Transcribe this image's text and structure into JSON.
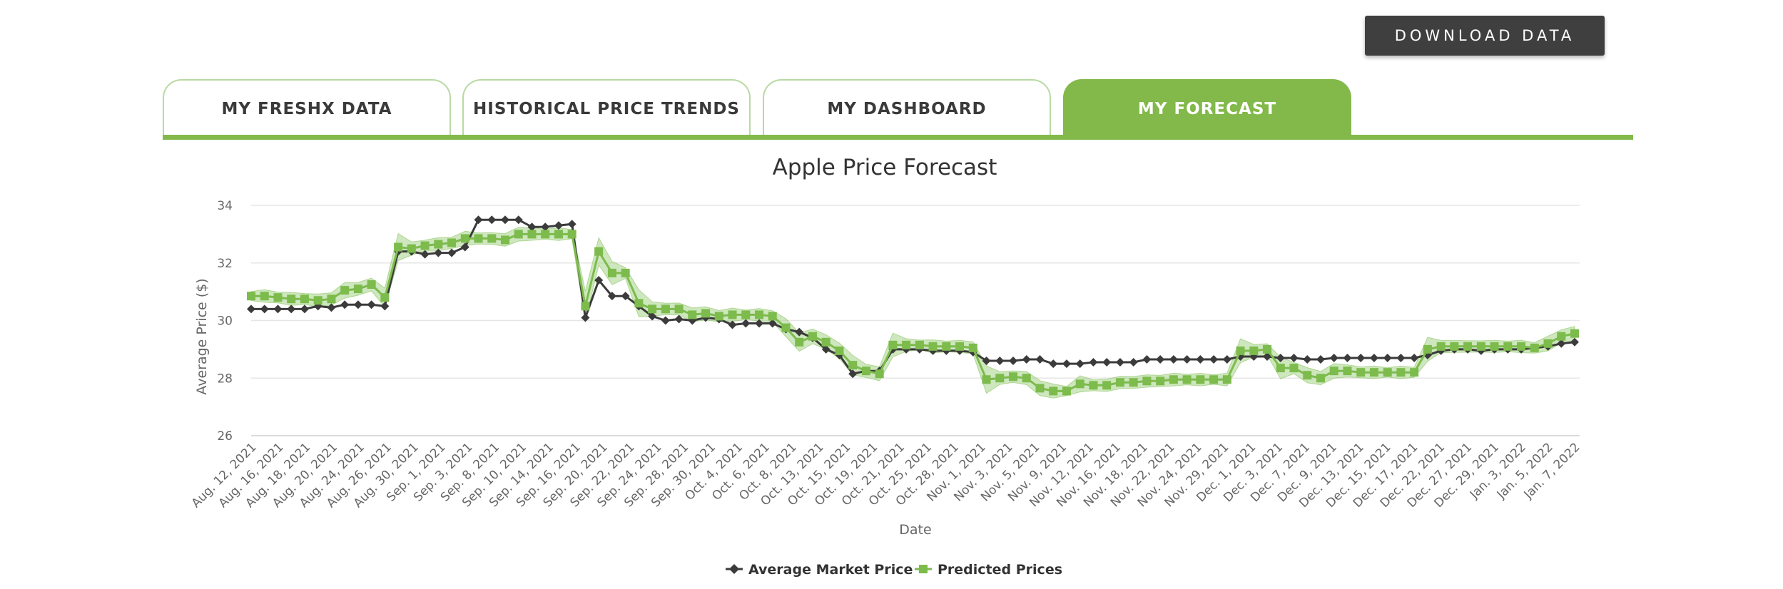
{
  "toolbar": {
    "download_label": "DOWNLOAD  DATA"
  },
  "tabs": [
    {
      "label": "MY FRESHX DATA",
      "active": false
    },
    {
      "label": "HISTORICAL PRICE TRENDS",
      "active": false
    },
    {
      "label": "MY DASHBOARD",
      "active": false
    },
    {
      "label": "MY FORECAST",
      "active": true
    }
  ],
  "colors": {
    "accent": "#82b94a",
    "market": "#3b3b3b",
    "predicted": "#7cbb4c",
    "band": "#a6d488"
  },
  "chart_data": {
    "type": "line",
    "title": "Apple Price Forecast",
    "xlabel": "Date",
    "ylabel": "Average Price ($)",
    "ylim": [
      26,
      34
    ],
    "yticks": [
      26,
      28,
      30,
      32,
      34
    ],
    "grid": true,
    "legend_position": "bottom-center",
    "x_tick_labels": [
      "Aug. 12, 2021",
      "Aug. 16, 2021",
      "Aug. 18, 2021",
      "Aug. 20, 2021",
      "Aug. 24, 2021",
      "Aug. 26, 2021",
      "Aug. 30, 2021",
      "Sep. 1, 2021",
      "Sep. 3, 2021",
      "Sep. 8, 2021",
      "Sep. 10, 2021",
      "Sep. 14, 2021",
      "Sep. 16, 2021",
      "Sep. 20, 2021",
      "Sep. 22, 2021",
      "Sep. 24, 2021",
      "Sep. 28, 2021",
      "Sep. 30, 2021",
      "Oct. 4, 2021",
      "Oct. 6, 2021",
      "Oct. 8, 2021",
      "Oct. 13, 2021",
      "Oct. 15, 2021",
      "Oct. 19, 2021",
      "Oct. 21, 2021",
      "Oct. 25, 2021",
      "Oct. 28, 2021",
      "Nov. 1, 2021",
      "Nov. 3, 2021",
      "Nov. 5, 2021",
      "Nov. 9, 2021",
      "Nov. 12, 2021",
      "Nov. 16, 2021",
      "Nov. 18, 2021",
      "Nov. 22, 2021",
      "Nov. 24, 2021",
      "Nov. 29, 2021",
      "Dec. 1, 2021",
      "Dec. 3, 2021",
      "Dec. 7, 2021",
      "Dec. 9, 2021",
      "Dec. 13, 2021",
      "Dec. 15, 2021",
      "Dec. 17, 2021",
      "Dec. 22, 2021",
      "Dec. 27, 2021",
      "Dec. 29, 2021",
      "Jan. 3, 2022",
      "Jan. 5, 2022",
      "Jan. 7, 2022"
    ],
    "series": [
      {
        "name": "Average Market Price",
        "values": [
          30.4,
          30.4,
          30.4,
          30.4,
          30.4,
          30.5,
          30.45,
          30.55,
          30.55,
          30.55,
          30.5,
          32.4,
          32.4,
          32.3,
          32.35,
          32.35,
          32.55,
          33.5,
          33.5,
          33.5,
          33.5,
          33.25,
          33.25,
          33.3,
          33.35,
          30.1,
          31.4,
          30.85,
          30.85,
          30.5,
          30.15,
          30.0,
          30.05,
          30.0,
          30.1,
          30.05,
          29.85,
          29.9,
          29.9,
          29.9,
          29.7,
          29.6,
          29.4,
          29.0,
          28.8,
          28.15,
          28.25,
          28.25,
          29.0,
          29.0,
          29.0,
          28.95,
          28.95,
          28.95,
          28.9,
          28.6,
          28.6,
          28.6,
          28.65,
          28.65,
          28.5,
          28.5,
          28.5,
          28.55,
          28.55,
          28.55,
          28.55,
          28.65,
          28.65,
          28.65,
          28.65,
          28.65,
          28.65,
          28.65,
          28.75,
          28.75,
          28.75,
          28.7,
          28.7,
          28.65,
          28.65,
          28.7,
          28.7,
          28.7,
          28.7,
          28.7,
          28.7,
          28.7,
          28.8,
          28.95,
          29.0,
          29.0,
          28.95,
          29.0,
          29.0,
          29.0,
          29.05,
          29.1,
          29.2,
          29.25
        ]
      },
      {
        "name": "Predicted Prices",
        "values": [
          30.85,
          30.85,
          30.8,
          30.75,
          30.75,
          30.7,
          30.75,
          31.05,
          31.1,
          31.25,
          30.8,
          32.55,
          32.5,
          32.6,
          32.65,
          32.7,
          32.85,
          32.85,
          32.85,
          32.8,
          33.0,
          33.0,
          33.0,
          33.0,
          33.0,
          30.5,
          32.4,
          31.65,
          31.65,
          30.6,
          30.4,
          30.4,
          30.4,
          30.2,
          30.25,
          30.15,
          30.2,
          30.2,
          30.2,
          30.15,
          29.75,
          29.25,
          29.45,
          29.25,
          28.95,
          28.45,
          28.25,
          28.15,
          29.15,
          29.15,
          29.15,
          29.1,
          29.1,
          29.1,
          29.05,
          27.95,
          28.0,
          28.05,
          28.0,
          27.65,
          27.55,
          27.55,
          27.8,
          27.75,
          27.75,
          27.85,
          27.85,
          27.9,
          27.9,
          27.95,
          27.95,
          27.95,
          27.95,
          27.95,
          28.95,
          28.95,
          29.0,
          28.35,
          28.35,
          28.1,
          28.0,
          28.25,
          28.25,
          28.2,
          28.2,
          28.2,
          28.2,
          28.2,
          29.0,
          29.1,
          29.1,
          29.1,
          29.1,
          29.1,
          29.1,
          29.1,
          29.05,
          29.2,
          29.45,
          29.55
        ]
      }
    ]
  }
}
